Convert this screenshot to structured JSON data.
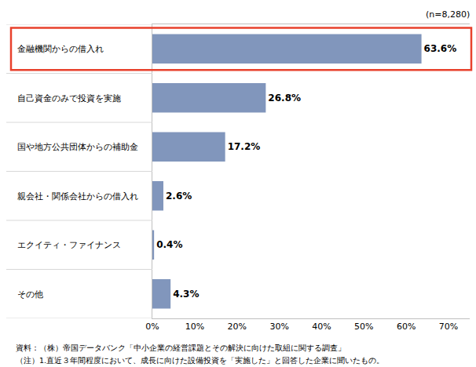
{
  "chart_data": {
    "type": "bar",
    "orientation": "horizontal",
    "categories": [
      "金融機関からの借入れ",
      "自己資金のみで投資を実施",
      "国や地方公共団体からの補助金",
      "親会社・関係会社からの借入れ",
      "エクイティ・ファイナンス",
      "その他"
    ],
    "values": [
      63.6,
      26.8,
      17.2,
      2.6,
      0.4,
      4.3
    ],
    "value_labels": [
      "63.6%",
      "26.8%",
      "17.2%",
      "2.6%",
      "0.4%",
      "4.3%"
    ],
    "data_labels": true,
    "color": "#8196bc",
    "xlim": [
      0,
      75
    ],
    "xticks": [
      {
        "value": 0,
        "label": "0%"
      },
      {
        "value": 10,
        "label": "10%"
      },
      {
        "value": 20,
        "label": "20%"
      },
      {
        "value": 30,
        "label": "30%"
      },
      {
        "value": 40,
        "label": "40%"
      },
      {
        "value": 50,
        "label": "50%"
      },
      {
        "value": 60,
        "label": "60%"
      },
      {
        "value": 70,
        "label": "70%"
      }
    ],
    "grid": false,
    "annotations": [
      "(n=8,280)"
    ],
    "source": "資料：（株）帝国データバンク「中小企業の経営課題とその解決に向けた取組に関する調査」",
    "note": "（注）1.直近３年間程度において、成長に向けた設備投資を「実施した」と回答した企業に聞いたもの。"
  }
}
